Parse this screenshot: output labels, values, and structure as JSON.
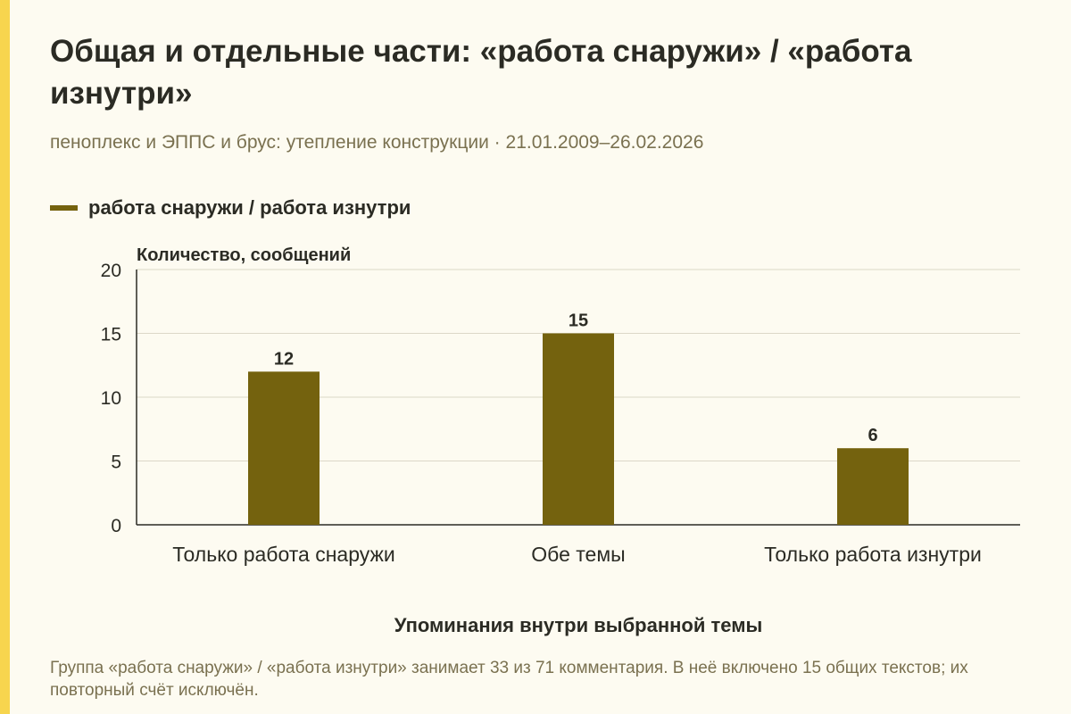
{
  "title": "Общая и отдельные части: «работа снаружи» / «работа изнутри»",
  "subtitle": "пеноплекс и ЭППС и брус: утепление конструкции · 21.01.2009–26.02.2026",
  "legend": {
    "label": "работа снаружи / работа изнутри"
  },
  "note": "Группа «работа снаружи» / «работа изнутри» занимает 33 из 71 комментария. В неё включено 15 общих текстов; их повторный счёт исключён.",
  "colors": {
    "bar": "#74620e",
    "grid": "#dcd8c8",
    "axis": "#2b2b24",
    "accent": "#f7d54e",
    "background": "#fdfbf1"
  },
  "chart_data": {
    "type": "bar",
    "categories": [
      "Только работа снаружи",
      "Обе темы",
      "Только работа изнутри"
    ],
    "series": [
      {
        "name": "работа снаружи / работа изнутри",
        "values": [
          12,
          15,
          6
        ]
      }
    ],
    "value_labels": [
      "12",
      "15",
      "6"
    ],
    "ylabel": "Количество, сообщений",
    "xlabel": "Упоминания внутри выбранной темы",
    "ylim": [
      0,
      20
    ],
    "yticks": [
      0,
      5,
      10,
      15,
      20
    ],
    "grid": true
  }
}
